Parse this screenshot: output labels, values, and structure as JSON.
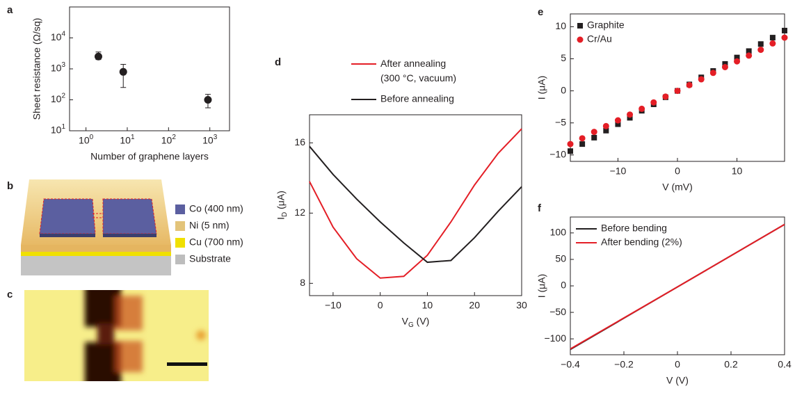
{
  "chart_data": [
    {
      "panel": "a",
      "type": "errorbar",
      "xlabel": "Number of graphene layers",
      "ylabel": "Sheet resistance (Ω/sq)",
      "xlog": true,
      "ylog": true,
      "x": [
        2,
        8,
        900
      ],
      "values": [
        2500,
        800,
        100
      ],
      "err_minus": [
        500,
        550,
        45
      ],
      "err_plus": [
        1000,
        600,
        50
      ],
      "color": "#231f20",
      "xlim": [
        0.4,
        3000
      ],
      "ylim": [
        10,
        100000
      ],
      "xticks": [
        {
          "value": 1,
          "label": "10^0"
        },
        {
          "value": 10,
          "label": "10^1"
        },
        {
          "value": 100,
          "label": "10^2"
        },
        {
          "value": 1000,
          "label": "10^3"
        }
      ],
      "yticks": [
        {
          "value": 10,
          "label": "10^1"
        },
        {
          "value": 100,
          "label": "10^2"
        },
        {
          "value": 1000,
          "label": "10^3"
        },
        {
          "value": 10000,
          "label": "10^4"
        }
      ]
    },
    {
      "panel": "d",
      "type": "line",
      "xlabel": "V_G (V)",
      "ylabel": "I_D (μA)",
      "legend": "top",
      "x": [
        -15,
        -10,
        -5,
        0,
        5,
        10,
        15,
        20,
        25,
        30
      ],
      "series": [
        {
          "name": "After annealing\n(300 °C, vacuum)",
          "color": "#e41e26",
          "values": [
            13.8,
            11.2,
            9.4,
            8.3,
            8.4,
            9.6,
            11.5,
            13.6,
            15.4,
            16.8
          ]
        },
        {
          "name": "Before annealing",
          "color": "#231f20",
          "values": [
            15.8,
            14.2,
            12.8,
            11.5,
            10.3,
            9.2,
            9.3,
            10.6,
            12.1,
            13.5
          ]
        }
      ],
      "xlim": [
        -15,
        30
      ],
      "ylim": [
        7.3,
        17.6
      ],
      "xticks": [
        {
          "value": -10,
          "label": "−10"
        },
        0,
        10,
        20,
        30
      ],
      "yticks": [
        8,
        12,
        16
      ]
    },
    {
      "panel": "e",
      "type": "scatter",
      "xlabel": "V (mV)",
      "ylabel": "I (μA)",
      "legend": "upper left",
      "x": [
        -18,
        -16,
        -14,
        -12,
        -10,
        -8,
        -6,
        -4,
        -2,
        0,
        2,
        4,
        6,
        8,
        10,
        12,
        14,
        16,
        18
      ],
      "series": [
        {
          "name": "Graphite",
          "color": "#231f20",
          "marker": "square",
          "values": [
            -9.4,
            -8.3,
            -7.3,
            -6.2,
            -5.2,
            -4.2,
            -3.1,
            -2.1,
            -1.0,
            0,
            1.0,
            2.1,
            3.1,
            4.2,
            5.2,
            6.2,
            7.3,
            8.3,
            9.4
          ]
        },
        {
          "name": "Cr/Au",
          "color": "#e41e26",
          "marker": "circle",
          "values": [
            -8.3,
            -7.4,
            -6.4,
            -5.5,
            -4.6,
            -3.7,
            -2.8,
            -1.8,
            -0.9,
            0,
            0.9,
            1.8,
            2.8,
            3.7,
            4.6,
            5.5,
            6.4,
            7.4,
            8.3
          ]
        }
      ],
      "xlim": [
        -18,
        18
      ],
      "ylim": [
        -11,
        12
      ],
      "xticks": [
        {
          "value": -10,
          "label": "−10"
        },
        0,
        10
      ],
      "yticks": [
        {
          "value": -10,
          "label": "−10"
        },
        {
          "value": -5,
          "label": "−5"
        },
        0,
        5,
        10
      ]
    },
    {
      "panel": "f",
      "type": "line",
      "xlabel": "V (V)",
      "ylabel": "I (μA)",
      "legend": "upper left",
      "x": [
        -0.4,
        0,
        0.4
      ],
      "series": [
        {
          "name": "Before bending",
          "color": "#231f20",
          "values": [
            -120,
            -2,
            116
          ]
        },
        {
          "name": "After bending (2%)",
          "color": "#e41e26",
          "values": [
            -119,
            -2,
            116
          ]
        }
      ],
      "xlim": [
        -0.4,
        0.4
      ],
      "ylim": [
        -130,
        130
      ],
      "xticks": [
        {
          "value": -0.4,
          "label": "−0.4"
        },
        {
          "value": -0.2,
          "label": "−0.2"
        },
        0,
        0.2,
        0.4
      ],
      "yticks": [
        {
          "value": -100,
          "label": "−100"
        },
        {
          "value": -50,
          "label": "−50"
        },
        0,
        50,
        100
      ]
    }
  ],
  "schematic": {
    "panel": "b",
    "legend": [
      {
        "label": "Co (400 nm)",
        "color": "#5b5fa0"
      },
      {
        "label": "Ni (5 nm)",
        "color": "#e3c47a"
      },
      {
        "label": "Cu (700 nm)",
        "color": "#f0e000"
      },
      {
        "label": "Substrate",
        "color": "#bdbdbd"
      }
    ]
  },
  "micrograph": {
    "panel": "c"
  }
}
